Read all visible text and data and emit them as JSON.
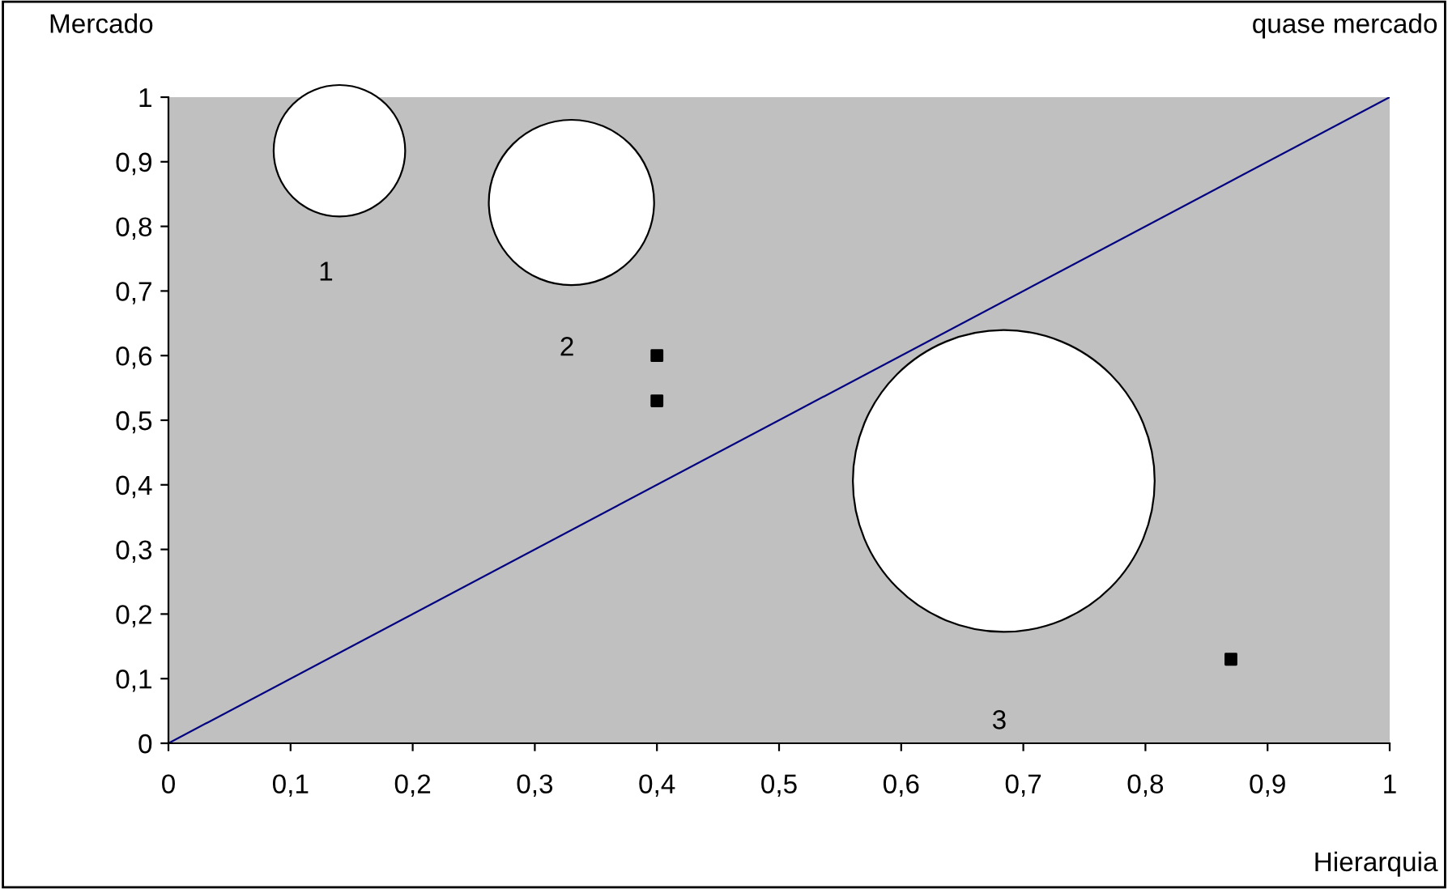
{
  "chart_data": {
    "type": "bubble",
    "ylabel": "Mercado",
    "xlabel": "Hierarquia",
    "xlim": [
      0,
      1
    ],
    "ylim": [
      0,
      1
    ],
    "xticks": [
      0,
      {
        "value": 0.1,
        "label": "0,1"
      },
      {
        "value": 0.2,
        "label": "0,2"
      },
      {
        "value": 0.3,
        "label": "0,3"
      },
      {
        "value": 0.4,
        "label": "0,4"
      },
      {
        "value": 0.5,
        "label": "0,5"
      },
      {
        "value": 0.6,
        "label": "0,6"
      },
      {
        "value": 0.7,
        "label": "0,7"
      },
      {
        "value": 0.8,
        "label": "0,8"
      },
      {
        "value": 0.9,
        "label": "0,9"
      },
      1
    ],
    "yticks": [
      0,
      {
        "value": 0.1,
        "label": "0,1"
      },
      {
        "value": 0.2,
        "label": "0,2"
      },
      {
        "value": 0.3,
        "label": "0,3"
      },
      {
        "value": 0.4,
        "label": "0,4"
      },
      {
        "value": 0.5,
        "label": "0,5"
      },
      {
        "value": 0.6,
        "label": "0,6"
      },
      {
        "value": 0.7,
        "label": "0,7"
      },
      {
        "value": 0.8,
        "label": "0,8"
      },
      {
        "value": 0.9,
        "label": "0,9"
      },
      1
    ],
    "series": [
      {
        "type": "line",
        "color": "#000080",
        "x": [
          0,
          1
        ],
        "values": [
          0,
          1
        ],
        "marker": "none",
        "line_style": "solid"
      },
      {
        "color": "#ffffff",
        "x": [
          0.14,
          0.33,
          0.684
        ],
        "values": [
          0.917,
          0.837,
          0.406
        ],
        "sizes": [
          0.19,
          0.3,
          1
        ]
      },
      {
        "type": "scatter",
        "color": "#000000",
        "x": [
          0.4,
          0.4,
          0.87
        ],
        "values": [
          0.6,
          0.53,
          0.13
        ],
        "marker": "square"
      }
    ],
    "annotations": [
      "1",
      "2",
      "3",
      "quase mercado"
    ]
  }
}
